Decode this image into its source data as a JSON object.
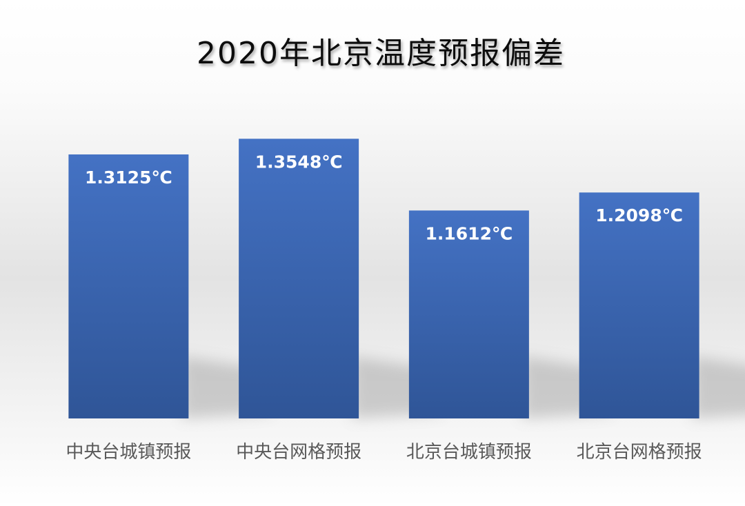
{
  "chart_data": {
    "type": "bar",
    "title": "2020年北京温度预报偏差",
    "categories": [
      "中央台城镇预报",
      "中央台网格预报",
      "北京台城镇预报",
      "北京台网格预报"
    ],
    "values": [
      1.3125,
      1.3548,
      1.1612,
      1.2098
    ],
    "data_labels": [
      "1.3125℃",
      "1.3548℃",
      "1.1612℃",
      "1.2098℃"
    ],
    "ylim": [
      0.6,
      1.4
    ],
    "xlabel": "",
    "ylabel": "",
    "grid": false,
    "legend": "none",
    "colors": {
      "bar_top": "#4472C4",
      "bar_bottom": "#2F5597",
      "title": "#111111",
      "tick_label": "#595959",
      "backdrop": "#D9D9D9"
    }
  }
}
